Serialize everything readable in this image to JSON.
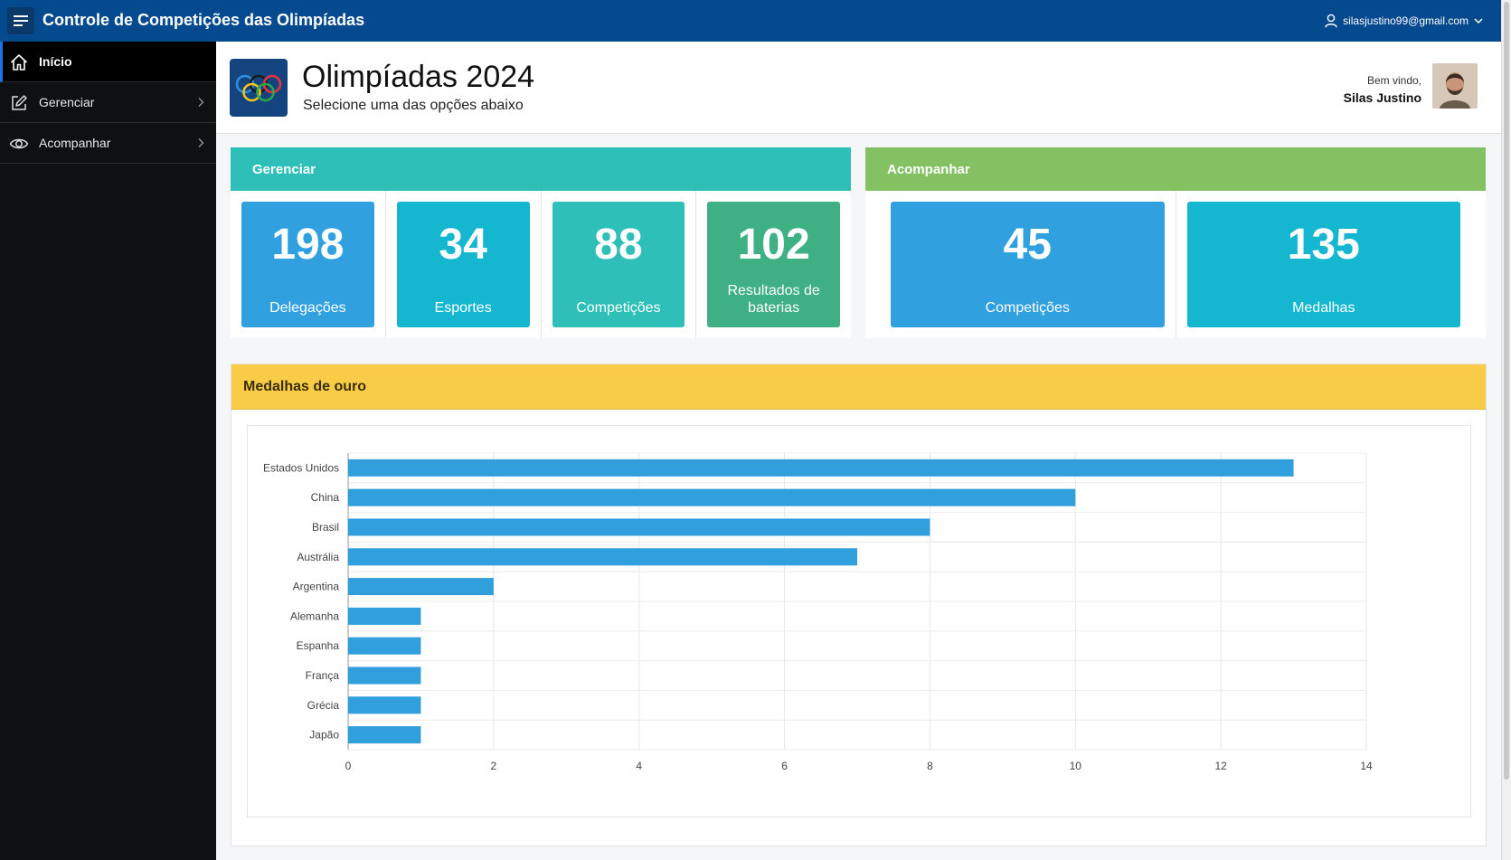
{
  "topbar": {
    "app_title": "Controle de Competições das Olimpíadas",
    "user_email": "silasjustino99@gmail.com",
    "bg_color": "#054a8e"
  },
  "sidebar": {
    "items": [
      {
        "label": "Início",
        "icon": "home-icon",
        "active": true
      },
      {
        "label": "Gerenciar",
        "icon": "edit-icon",
        "active": false
      },
      {
        "label": "Acompanhar",
        "icon": "eye-icon",
        "active": false
      }
    ]
  },
  "header": {
    "title": "Olimpíadas 2024",
    "subtitle": "Selecione uma das opções abaixo",
    "welcome_label": "Bem vindo,",
    "user_name": "Silas Justino"
  },
  "gerenciar": {
    "title": "Gerenciar",
    "color": "#2ebfb9",
    "cards": [
      {
        "value": "198",
        "label": "Delegações",
        "color": "#30a0df"
      },
      {
        "value": "34",
        "label": "Esportes",
        "color": "#14b7cf"
      },
      {
        "value": "88",
        "label": "Competições",
        "color": "#2ebfb9"
      },
      {
        "value": "102",
        "label": "Resultados de baterias",
        "color": "#3eb083"
      }
    ]
  },
  "acompanhar": {
    "title": "Acompanhar",
    "color": "#84c162",
    "cards": [
      {
        "value": "45",
        "label": "Competições",
        "color": "#30a0df"
      },
      {
        "value": "135",
        "label": "Medalhas",
        "color": "#14b7cf"
      }
    ]
  },
  "chart_region": {
    "title": "Medalhas de ouro",
    "color": "#f9cc48"
  },
  "chart_data": {
    "type": "bar",
    "orientation": "horizontal",
    "categories": [
      "Estados Unidos",
      "China",
      "Brasil",
      "Austrália",
      "Argentina",
      "Alemanha",
      "Espanha",
      "França",
      "Grécia",
      "Japão"
    ],
    "values": [
      13,
      10,
      8,
      7,
      2,
      1,
      1,
      1,
      1,
      1
    ],
    "xlim": [
      0,
      14
    ],
    "xticks": [
      0,
      2,
      4,
      6,
      8,
      10,
      12,
      14
    ],
    "grid": true,
    "bar_color": "#309fdb"
  }
}
